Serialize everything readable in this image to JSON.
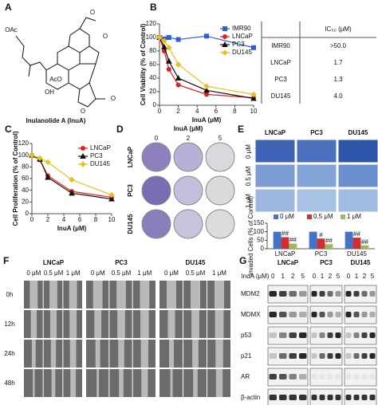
{
  "panel_labels": [
    "A",
    "B",
    "C",
    "D",
    "E",
    "F",
    "G"
  ],
  "structure": {
    "name": "Inulanolide A (InuA)",
    "atoms": [
      "OAc",
      "O",
      "O",
      "OH",
      "AcO",
      "O",
      "O"
    ]
  },
  "ic50_table": {
    "header": "IC₅₀ (μM)",
    "rows": [
      [
        "IMR90",
        ">50.0"
      ],
      [
        "LNCaP",
        "1.7"
      ],
      [
        "PC3",
        "1.3"
      ],
      [
        "DU145",
        "4.0"
      ]
    ]
  },
  "colony": {
    "title": "InuA (μM)",
    "doses": [
      "0",
      "2",
      "5"
    ],
    "cells": [
      "LNCaP",
      "PC3",
      "DU145"
    ]
  },
  "invasion": {
    "cells": [
      "LNCaP",
      "PC3",
      "DU145"
    ],
    "doses": [
      "0 μM",
      "0.5 μM",
      "1 μM"
    ]
  },
  "migration": {
    "cells": [
      "LNCaP",
      "PC3",
      "DU145"
    ],
    "doses": [
      "0 μM",
      "0.5 μM",
      "1 μM"
    ],
    "times": [
      "0h",
      "12h",
      "24h",
      "48h"
    ]
  },
  "western": {
    "title": "InuA (μM)",
    "cells": [
      "LNCaP",
      "PC3",
      "DU145"
    ],
    "doses": [
      "0",
      "1",
      "2",
      "5"
    ],
    "proteins": [
      "MDM2",
      "MDMX",
      "p53",
      "p21",
      "AR",
      "β-actin"
    ]
  },
  "chart_data": [
    {
      "type": "line",
      "xlabel": "InuA (μM)",
      "ylabel": "Cell Viability (% of Control)",
      "x": [
        0,
        0.5,
        1,
        2,
        5,
        10
      ],
      "xlim": [
        0,
        10
      ],
      "xticks": [
        0,
        2,
        4,
        6,
        8,
        10
      ],
      "ylim": [
        0,
        120
      ],
      "yticks": [
        0,
        20,
        40,
        60,
        80,
        100,
        120
      ],
      "legend": "upper right",
      "series": [
        {
          "name": "IMR90",
          "color": "#2f5fd0",
          "marker": "square",
          "values": [
            100,
            98,
            100,
            97,
            102,
            85
          ]
        },
        {
          "name": "LNCaP",
          "color": "#e02020",
          "marker": "circle",
          "values": [
            100,
            80,
            53,
            30,
            16,
            11
          ]
        },
        {
          "name": "PC3",
          "color": "#111111",
          "marker": "triangle",
          "values": [
            100,
            86,
            65,
            40,
            22,
            10
          ]
        },
        {
          "name": "DU145",
          "color": "#e8c020",
          "marker": "diamond",
          "values": [
            100,
            95,
            85,
            60,
            28,
            16
          ]
        }
      ]
    },
    {
      "type": "line",
      "xlabel": "InuA (μM)",
      "ylabel": "Cell Proliferation (% of Control)",
      "x": [
        0,
        1,
        2,
        5,
        10
      ],
      "xlim": [
        0,
        10
      ],
      "xticks": [
        0,
        2,
        4,
        6,
        8,
        10
      ],
      "ylim": [
        0,
        120
      ],
      "yticks": [
        0,
        20,
        40,
        60,
        80,
        100,
        120
      ],
      "legend": "upper right",
      "series": [
        {
          "name": "LNCaP",
          "color": "#e02020",
          "marker": "circle",
          "values": [
            100,
            92,
            65,
            38,
            28
          ]
        },
        {
          "name": "PC3",
          "color": "#111111",
          "marker": "triangle",
          "values": [
            100,
            93,
            62,
            35,
            25
          ]
        },
        {
          "name": "DU145",
          "color": "#e8c020",
          "marker": "diamond",
          "values": [
            100,
            95,
            88,
            58,
            32
          ]
        }
      ]
    },
    {
      "type": "bar",
      "ylabel": "Invaded Cells (% of Control)",
      "categories": [
        "LNCaP",
        "PC3",
        "DU145"
      ],
      "ylim": [
        0,
        150
      ],
      "yticks": [
        0,
        50,
        100,
        150
      ],
      "legend": "top",
      "series": [
        {
          "name": "0 μM",
          "color": "#4472c4",
          "values": [
            100,
            100,
            100
          ]
        },
        {
          "name": "0.5 μM",
          "color": "#d03030",
          "values": [
            68,
            60,
            65
          ],
          "annotations": [
            "##",
            "#",
            "##"
          ]
        },
        {
          "name": "1 μM",
          "color": "#9bbb59",
          "values": [
            30,
            27,
            20
          ],
          "annotations": [
            "##",
            "##",
            "##"
          ]
        }
      ]
    }
  ]
}
